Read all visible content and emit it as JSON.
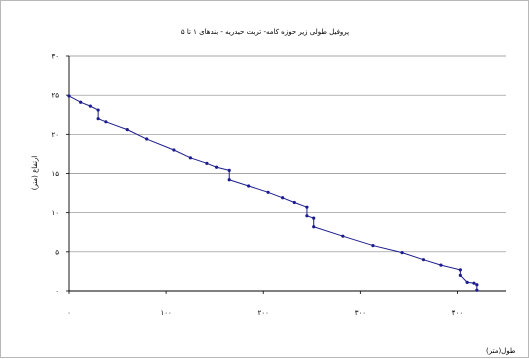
{
  "chart_data": {
    "type": "line",
    "title": "پروفیل طولی زیر حوزه کامه- تربت حیدریه - بندهای ۱ تا ۵",
    "xlabel": "طول(متر)",
    "ylabel": "(ارتفاع (متر",
    "xlim": [
      0,
      450
    ],
    "ylim": [
      0,
      30
    ],
    "x_ticks": [
      0,
      100,
      200,
      300,
      400
    ],
    "x_tick_labels": [
      "۰",
      "۱۰۰",
      "۲۰۰",
      "۳۰۰",
      "۴۰۰"
    ],
    "y_ticks": [
      0,
      5,
      10,
      15,
      20,
      25,
      30
    ],
    "y_tick_labels": [
      "۰",
      "۵",
      "۱۰",
      "۱۵",
      "۲۰",
      "۲۵",
      "۳۰"
    ],
    "grid": "horizontal",
    "legend": "none",
    "line_color": "#1c1c8c",
    "series": [
      {
        "x": [
          0,
          12,
          22,
          30,
          30,
          38,
          60,
          80,
          108,
          125,
          142,
          152,
          165,
          165,
          185,
          205,
          220,
          232,
          245,
          245,
          252,
          252,
          282,
          313,
          343,
          365,
          383,
          403,
          403,
          410,
          417,
          420,
          420
        ],
        "y": [
          24.9,
          24.1,
          23.6,
          23.1,
          22.0,
          21.6,
          20.6,
          19.4,
          18.0,
          17.0,
          16.3,
          15.8,
          15.4,
          14.2,
          13.4,
          12.6,
          11.9,
          11.3,
          10.7,
          9.6,
          9.3,
          8.2,
          7.0,
          5.8,
          4.9,
          4.0,
          3.3,
          2.7,
          2.0,
          1.1,
          1.0,
          0.8,
          0.1
        ]
      }
    ]
  }
}
